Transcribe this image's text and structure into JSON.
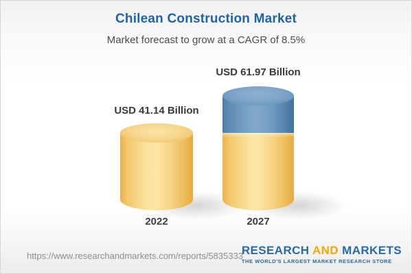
{
  "header": {
    "title": "Chilean Construction Market",
    "subtitle": "Market forecast to grow at a CAGR of 8.5%"
  },
  "chart_data": {
    "type": "bar",
    "bar_style": "3d-cylinder",
    "categories": [
      "2022",
      "2027"
    ],
    "values": [
      41.14,
      61.97
    ],
    "value_labels": [
      "USD 41.14 Billion",
      "USD 61.97 Billion"
    ],
    "unit": "USD Billion",
    "cagr_pct": 8.5,
    "title": "Chilean Construction Market",
    "xlabel": "",
    "ylabel": "",
    "grid": false,
    "legend": "none",
    "colors": {
      "base_segment": "#F3C868",
      "growth_segment": "#5E8BB4",
      "title_text": "#1C64A9"
    },
    "notes": "2027 bar is a stacked cylinder: yellow base equal to 2022 value (41.14) plus blue growth segment up to 61.97"
  },
  "footer": {
    "url": "https://www.researchandmarkets.com/reports/5835333",
    "logo": {
      "research": "RESEARCH",
      "and": "AND",
      "markets": "MARKETS",
      "tagline": "THE WORLD'S LARGEST MARKET RESEARCH STORE"
    }
  }
}
